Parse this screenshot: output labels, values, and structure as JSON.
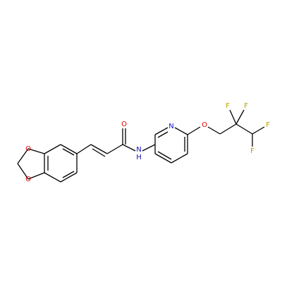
{
  "atoms": [
    {
      "label": "O"
    },
    {
      "label": "O"
    },
    {
      "label": "O"
    },
    {
      "label": "N"
    },
    {
      "label": "H"
    },
    {
      "label": "N"
    },
    {
      "label": "O"
    },
    {
      "label": "F"
    },
    {
      "label": "F"
    },
    {
      "label": "F"
    },
    {
      "label": "F"
    }
  ]
}
